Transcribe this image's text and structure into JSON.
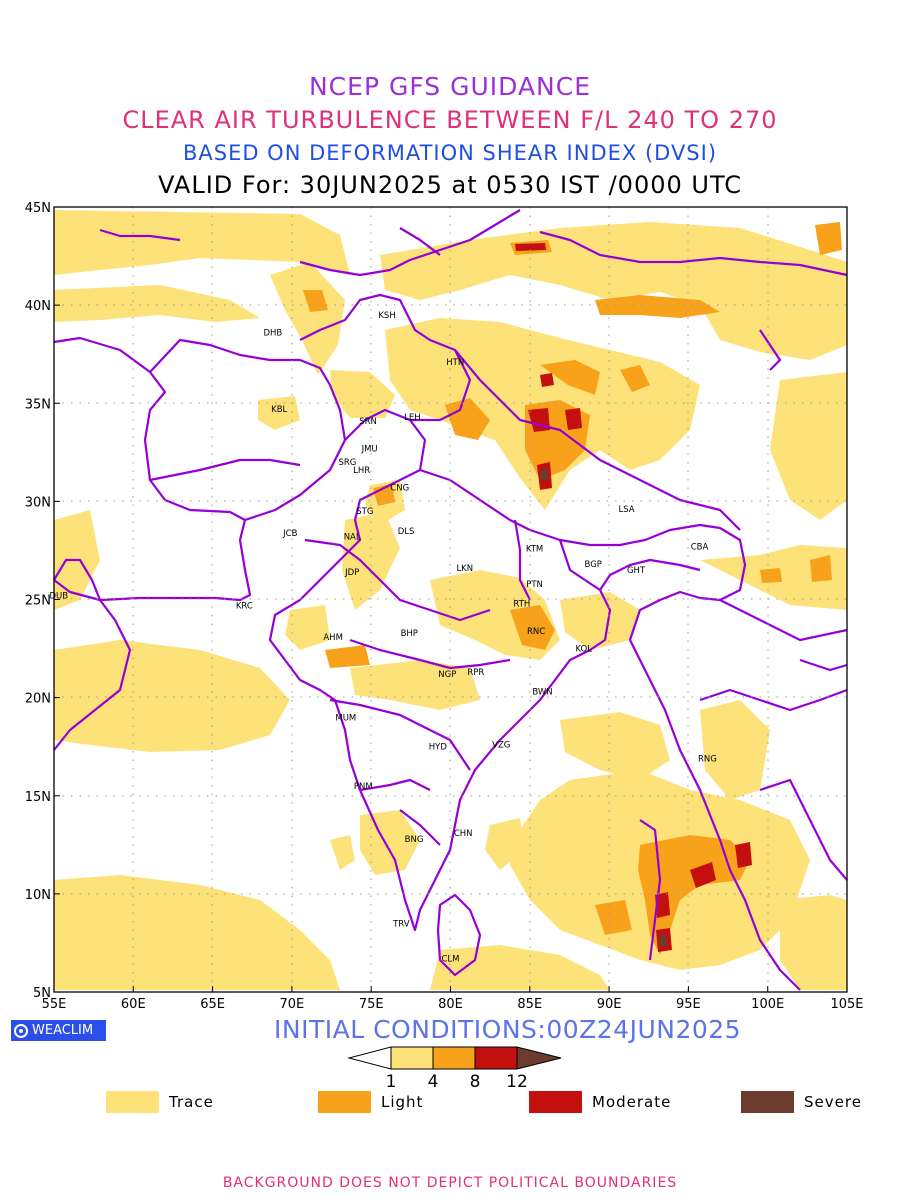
{
  "titles": {
    "line1": "NCEP GFS GUIDANCE",
    "line2": "CLEAR AIR TURBULENCE BETWEEN F/L 240 TO 270",
    "line3": "BASED ON DEFORMATION SHEAR INDEX (DVSI)",
    "line4": "VALID For: 30JUN2025 at 0530 IST /0000 UTC"
  },
  "axes": {
    "lon_range": [
      55,
      105
    ],
    "lat_range": [
      5,
      45
    ],
    "lon_ticks": [
      "55E",
      "60E",
      "65E",
      "70E",
      "75E",
      "80E",
      "85E",
      "90E",
      "95E",
      "100E",
      "105E"
    ],
    "lat_ticks": [
      "45N",
      "40N",
      "35N",
      "30N",
      "25N",
      "20N",
      "15N",
      "10N",
      "5N"
    ],
    "grid": "dotted"
  },
  "cities": [
    {
      "code": "KSH",
      "lon": 76.0,
      "lat": 39.5
    },
    {
      "code": "DHB",
      "lon": 68.8,
      "lat": 38.6
    },
    {
      "code": "HTN",
      "lon": 80.3,
      "lat": 37.1
    },
    {
      "code": "KBL",
      "lon": 69.2,
      "lat": 34.7
    },
    {
      "code": "SRN",
      "lon": 74.8,
      "lat": 34.1
    },
    {
      "code": "LEH",
      "lon": 77.6,
      "lat": 34.3
    },
    {
      "code": "JMU",
      "lon": 74.9,
      "lat": 32.7
    },
    {
      "code": "SRG",
      "lon": 73.5,
      "lat": 32.0
    },
    {
      "code": "LHR",
      "lon": 74.4,
      "lat": 31.6
    },
    {
      "code": "CNG",
      "lon": 76.8,
      "lat": 30.7
    },
    {
      "code": "LSA",
      "lon": 91.1,
      "lat": 29.6
    },
    {
      "code": "STG",
      "lon": 74.6,
      "lat": 29.5
    },
    {
      "code": "JCB",
      "lon": 69.9,
      "lat": 28.4
    },
    {
      "code": "NAL",
      "lon": 73.8,
      "lat": 28.2
    },
    {
      "code": "DLS",
      "lon": 77.2,
      "lat": 28.5
    },
    {
      "code": "KTM",
      "lon": 85.3,
      "lat": 27.6
    },
    {
      "code": "CBA",
      "lon": 95.7,
      "lat": 27.7
    },
    {
      "code": "BGP",
      "lon": 89.0,
      "lat": 26.8
    },
    {
      "code": "GHT",
      "lon": 91.7,
      "lat": 26.5
    },
    {
      "code": "JDP",
      "lon": 73.8,
      "lat": 26.4
    },
    {
      "code": "LKN",
      "lon": 80.9,
      "lat": 26.6
    },
    {
      "code": "PTN",
      "lon": 85.3,
      "lat": 25.8
    },
    {
      "code": "DUB",
      "lon": 55.3,
      "lat": 25.2
    },
    {
      "code": "KRC",
      "lon": 67.0,
      "lat": 24.7
    },
    {
      "code": "RTH",
      "lon": 84.5,
      "lat": 24.8
    },
    {
      "code": "RNC",
      "lon": 85.4,
      "lat": 23.4
    },
    {
      "code": "AHM",
      "lon": 72.6,
      "lat": 23.1
    },
    {
      "code": "BHP",
      "lon": 77.4,
      "lat": 23.3
    },
    {
      "code": "KOL",
      "lon": 88.4,
      "lat": 22.5
    },
    {
      "code": "NGP",
      "lon": 79.8,
      "lat": 21.2
    },
    {
      "code": "RPR",
      "lon": 81.6,
      "lat": 21.3
    },
    {
      "code": "BWN",
      "lon": 85.8,
      "lat": 20.3
    },
    {
      "code": "MUM",
      "lon": 73.4,
      "lat": 19.0
    },
    {
      "code": "HYD",
      "lon": 79.2,
      "lat": 17.5
    },
    {
      "code": "VZG",
      "lon": 83.2,
      "lat": 17.6
    },
    {
      "code": "RNG",
      "lon": 96.2,
      "lat": 16.9
    },
    {
      "code": "PNM",
      "lon": 74.5,
      "lat": 15.5
    },
    {
      "code": "CHN",
      "lon": 80.8,
      "lat": 13.1
    },
    {
      "code": "BNG",
      "lon": 77.7,
      "lat": 12.8
    },
    {
      "code": "TRV",
      "lon": 76.9,
      "lat": 8.5
    },
    {
      "code": "CLM",
      "lon": 80.0,
      "lat": 6.7
    }
  ],
  "colors": {
    "trace": "#fde27a",
    "light": "#f8a11a",
    "moderate": "#c40f0f",
    "severe": "#6b3b2e",
    "boundary": "#9500d6"
  },
  "initial_conditions": "INITIAL CONDITIONS:00Z24JUN2025",
  "brand": "WEACLIM",
  "colorbar": {
    "ticks": [
      "1",
      "4",
      "8",
      "12"
    ],
    "colors": [
      "#ffffff",
      "#fde27a",
      "#f8a11a",
      "#c40f0f",
      "#6b3b2e"
    ]
  },
  "legend": [
    {
      "label": "Trace",
      "color": "#fde27a"
    },
    {
      "label": "Light",
      "color": "#f8a11a"
    },
    {
      "label": "Moderate",
      "color": "#c40f0f"
    },
    {
      "label": "Severe",
      "color": "#6b3b2e"
    }
  ],
  "disclaimer": "BACKGROUND DOES NOT DEPICT POLITICAL BOUNDARIES"
}
